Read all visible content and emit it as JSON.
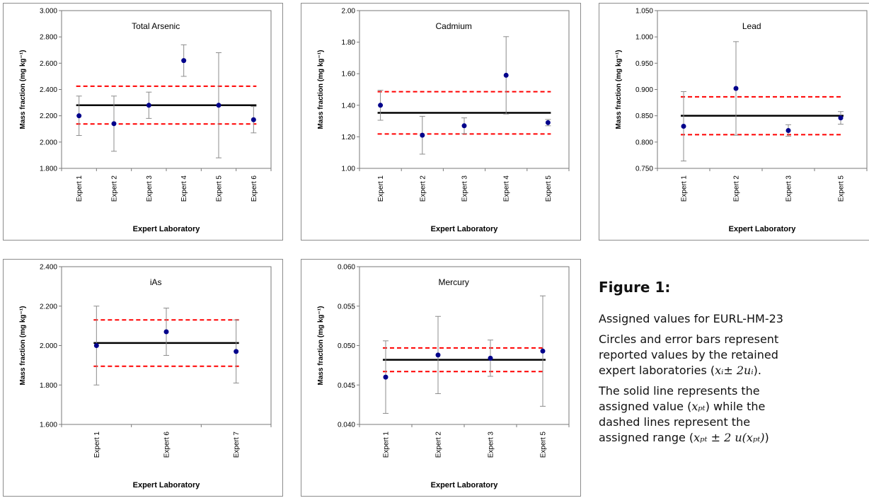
{
  "chart_data": [
    {
      "type": "scatter",
      "title": "Total Arsenic",
      "ylabel": "Mass fraction (mg kg⁻¹)",
      "xlabel": "Expert Laboratory",
      "ylim": [
        1.8,
        3.0
      ],
      "yticks": [
        "1.800",
        "2.000",
        "2.200",
        "2.400",
        "2.600",
        "2.800",
        "3.000"
      ],
      "categories": [
        "Expert 1",
        "Expert 2",
        "Expert 3",
        "Expert 4",
        "Expert 5",
        "Expert 6"
      ],
      "values": [
        2.2,
        2.14,
        2.28,
        2.62,
        2.28,
        2.17
      ],
      "errors": [
        0.15,
        0.21,
        0.1,
        0.12,
        0.4,
        0.1
      ],
      "assigned_value": 2.28,
      "assigned_range": [
        2.138,
        2.425
      ],
      "colors": {
        "marker": "#00008b",
        "solid": "#000000",
        "dashed": "#ff0000",
        "errorbar": "#8c8c8c"
      }
    },
    {
      "type": "scatter",
      "title": "Cadmium",
      "ylabel": "Mass fraction (mg kg⁻¹)",
      "xlabel": "Expert Laboratory",
      "ylim": [
        1.0,
        2.0
      ],
      "yticks": [
        "1.00",
        "1.20",
        "1.40",
        "1.60",
        "1.80",
        "2.00"
      ],
      "categories": [
        "Expert 1",
        "Expert 2",
        "Expert 3",
        "Expert 4",
        "Expert 5"
      ],
      "values": [
        1.4,
        1.21,
        1.27,
        1.59,
        1.29
      ],
      "errors": [
        0.095,
        0.12,
        0.05,
        0.245,
        0.02
      ],
      "assigned_value": 1.352,
      "assigned_range": [
        1.218,
        1.486
      ],
      "colors": {
        "marker": "#00008b",
        "solid": "#000000",
        "dashed": "#ff0000",
        "errorbar": "#8c8c8c"
      }
    },
    {
      "type": "scatter",
      "title": "Lead",
      "ylabel": "Mass fraction (mg kg⁻¹)",
      "xlabel": "Expert Laboratory",
      "ylim": [
        0.75,
        1.05
      ],
      "yticks": [
        "0.750",
        "0.800",
        "0.850",
        "0.900",
        "0.950",
        "1.000",
        "1.050"
      ],
      "categories": [
        "Expert 1",
        "Expert 2",
        "Expert 3",
        "Expert 5"
      ],
      "values": [
        0.83,
        0.902,
        0.822,
        0.846
      ],
      "errors": [
        0.066,
        0.089,
        0.011,
        0.012
      ],
      "assigned_value": 0.85,
      "assigned_range": [
        0.814,
        0.886
      ],
      "colors": {
        "marker": "#00008b",
        "solid": "#000000",
        "dashed": "#ff0000",
        "errorbar": "#8c8c8c"
      }
    },
    {
      "type": "scatter",
      "title": "iAs",
      "ylabel": "Mass fraction (mg kg⁻¹)",
      "xlabel": "Expert Laboratory",
      "ylim": [
        1.6,
        2.4
      ],
      "yticks": [
        "1.600",
        "1.800",
        "2.000",
        "2.200",
        "2.400"
      ],
      "categories": [
        "Expert 1",
        "Expert 6",
        "Expert 7"
      ],
      "values": [
        2.0,
        2.07,
        1.97
      ],
      "errors": [
        0.2,
        0.12,
        0.16
      ],
      "assigned_value": 2.013,
      "assigned_range": [
        1.895,
        2.13
      ],
      "colors": {
        "marker": "#00008b",
        "solid": "#000000",
        "dashed": "#ff0000",
        "errorbar": "#8c8c8c"
      }
    },
    {
      "type": "scatter",
      "title": "Mercury",
      "ylabel": "Mass fraction (mg kg⁻¹)",
      "xlabel": "Expert Laboratory",
      "ylim": [
        0.04,
        0.06
      ],
      "yticks": [
        "0.040",
        "0.045",
        "0.050",
        "0.055",
        "0.060"
      ],
      "categories": [
        "Expert 1",
        "Expert 2",
        "Expert 3",
        "Expert 5"
      ],
      "values": [
        0.046,
        0.0488,
        0.0484,
        0.0493
      ],
      "errors": [
        0.0046,
        0.0049,
        0.0023,
        0.007
      ],
      "assigned_value": 0.0482,
      "assigned_range": [
        0.0467,
        0.0497
      ],
      "colors": {
        "marker": "#00008b",
        "solid": "#000000",
        "dashed": "#ff0000",
        "errorbar": "#8c8c8c"
      }
    }
  ],
  "caption": {
    "title": "Figure 1:",
    "line1": "Assigned values for EURL-HM-23",
    "p2_a": "Circles and error bars represent",
    "p2_b": "reported values by the retained",
    "p2_c_pre": "expert laboratories (",
    "p2_c_math": "xᵢ± 2uᵢ",
    "p2_c_post": ").",
    "p3_a": "The solid line represents the",
    "p3_b_pre": "assigned value (",
    "p3_b_math": "xₚₜ",
    "p3_b_post": ") while the",
    "p3_c": "dashed lines represent the",
    "p3_d_pre": "assigned range (",
    "p3_d_math": "xₚₜ ± 2 u(xₚₜ)",
    "p3_d_post": ")"
  }
}
